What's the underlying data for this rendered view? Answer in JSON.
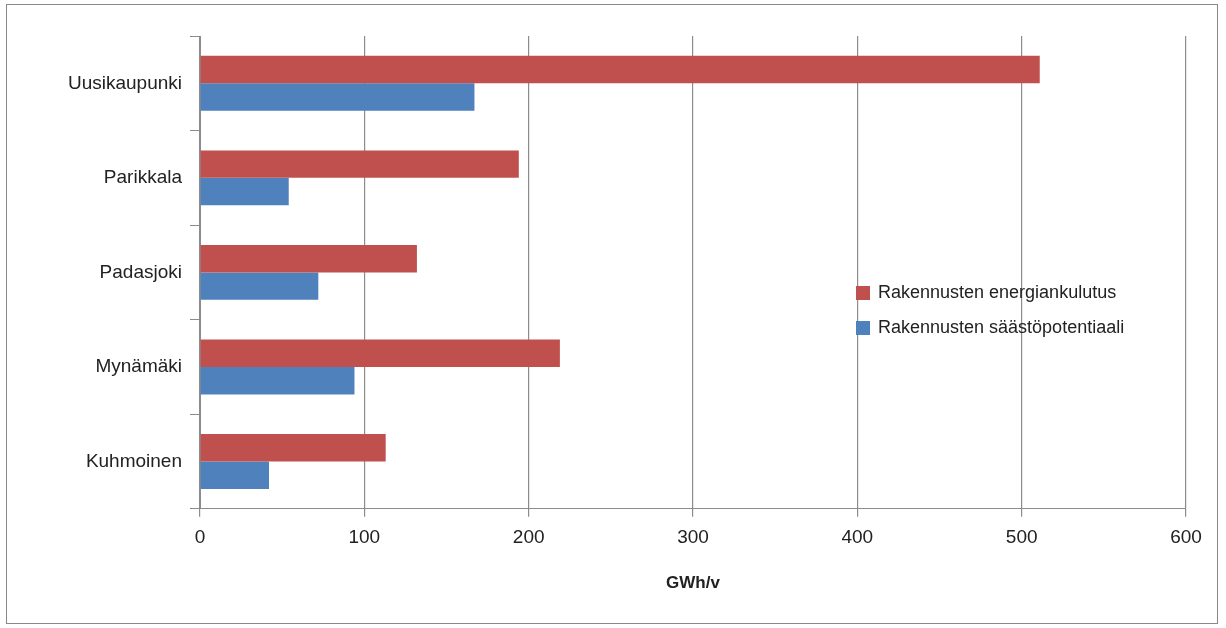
{
  "chart_data": {
    "type": "bar",
    "orientation": "horizontal",
    "xlabel": "GWh/v",
    "categories": [
      "Uusikaupunki",
      "Parikkala",
      "Padasjoki",
      "Mynämäki",
      "Kuhmoinen"
    ],
    "series": [
      {
        "name": "Rakennusten energiankulutus",
        "color": "#c0504d",
        "values": [
          511,
          194,
          132,
          219,
          113
        ]
      },
      {
        "name": "Rakennusten säästöpotentiaali",
        "color": "#4f81bd",
        "values": [
          167,
          54,
          72,
          94,
          42
        ]
      }
    ],
    "xlim": [
      0,
      600
    ],
    "xticks": [
      0,
      100,
      200,
      300,
      400,
      500,
      600
    ],
    "grid": "x",
    "legend": "right"
  }
}
